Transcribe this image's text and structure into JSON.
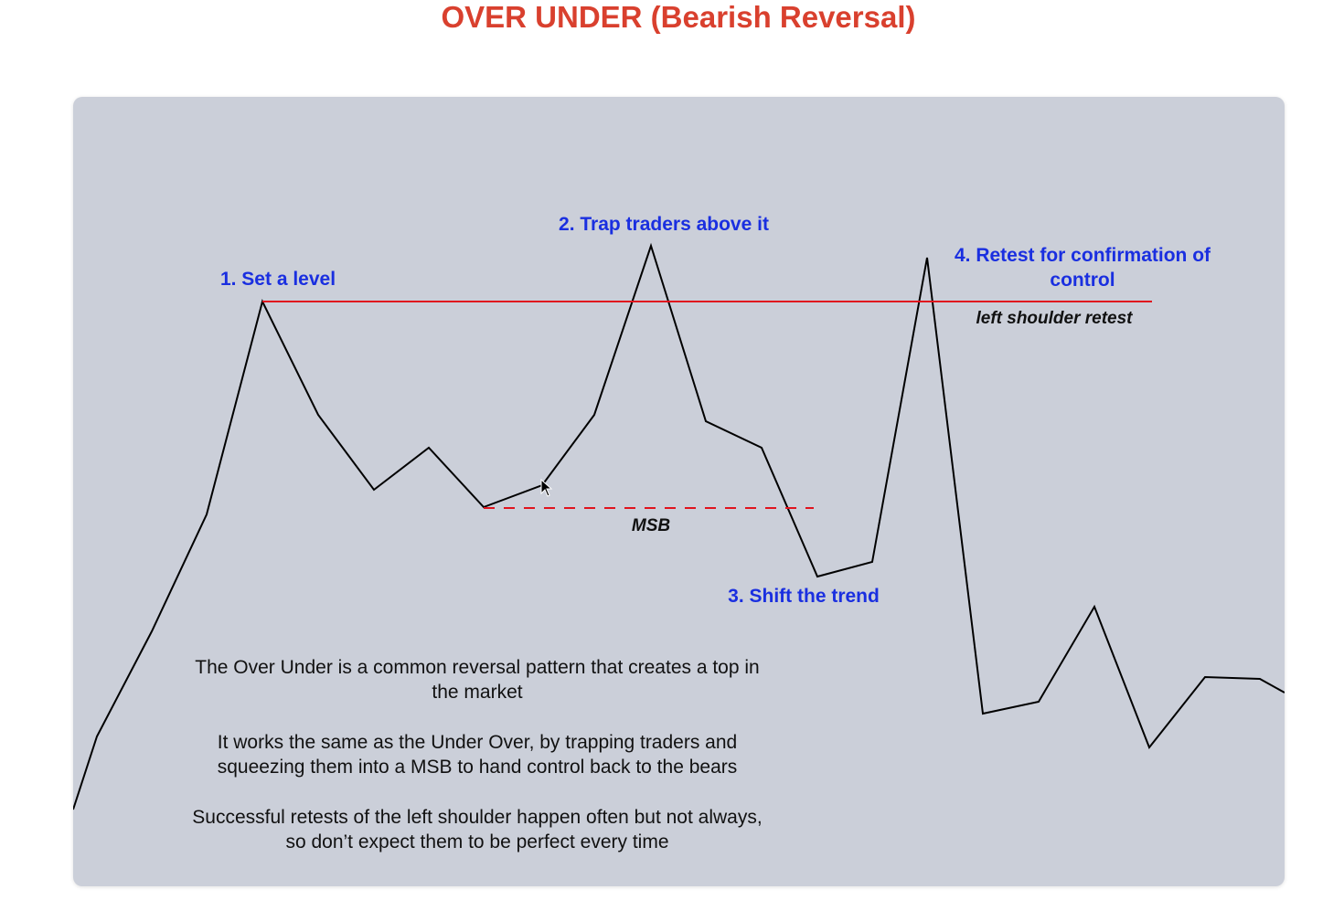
{
  "title": "OVER UNDER (Bearish Reversal)",
  "labels": {
    "step1": "1. Set a level",
    "step2": "2. Trap traders above it",
    "step3": "3. Shift the trend",
    "step4_line1": "4. Retest for confirmation of",
    "step4_line2": "control",
    "left_shoulder_retest": "left shoulder retest",
    "msb": "MSB"
  },
  "description": [
    [
      "The Over Under is a common reversal pattern that creates a top in",
      "the market"
    ],
    [
      "It works the same as the Under Over, by trapping traders and",
      "squeezing them into a MSB to hand control back to the bears"
    ],
    [
      "Successful retests of the left shoulder happen often but not always,",
      "so don’t expect them to be perfect every time"
    ]
  ],
  "colors": {
    "title": "#d9402e",
    "panel": "#cbcfd9",
    "step_labels": "#1a2fe0",
    "price_line": "#000000",
    "level_line": "#e0141e",
    "msb_line": "#e0141e"
  },
  "icons": [
    "mouse-cursor-icon"
  ]
}
